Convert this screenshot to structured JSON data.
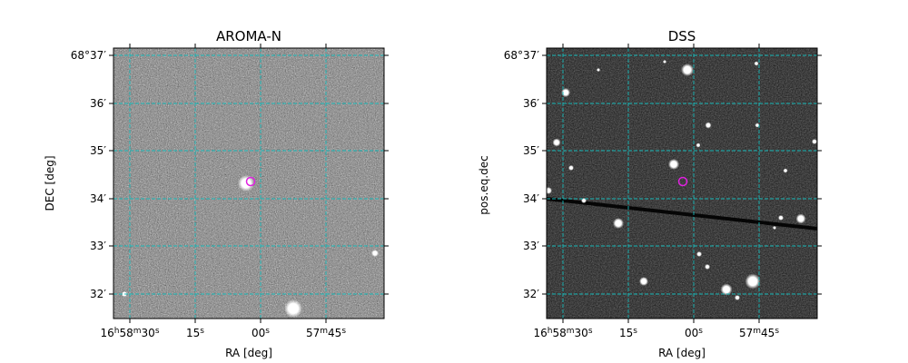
{
  "panels": [
    {
      "title": "AROMA-N",
      "xlabel": "RA [deg]",
      "ylabel": "DEC [deg]",
      "style": "noise",
      "xticks": [
        "16h58m30s",
        "15s",
        "00s",
        "57m45s"
      ],
      "yticks": [
        "68°37′",
        "36′",
        "35′",
        "34′",
        "33′",
        "32′"
      ]
    },
    {
      "title": "DSS",
      "xlabel": "RA [deg]",
      "ylabel": "pos.eq.dec",
      "style": "dark",
      "xticks": [
        "16h58m30s",
        "15s",
        "00s",
        "57m45s"
      ],
      "yticks": [
        "68°37′",
        "36′",
        "35′",
        "34′",
        "33′",
        "32′"
      ]
    }
  ],
  "colors": {
    "grid": "#17b8b8",
    "marker": "#e020e0",
    "frame": "#000000"
  }
}
